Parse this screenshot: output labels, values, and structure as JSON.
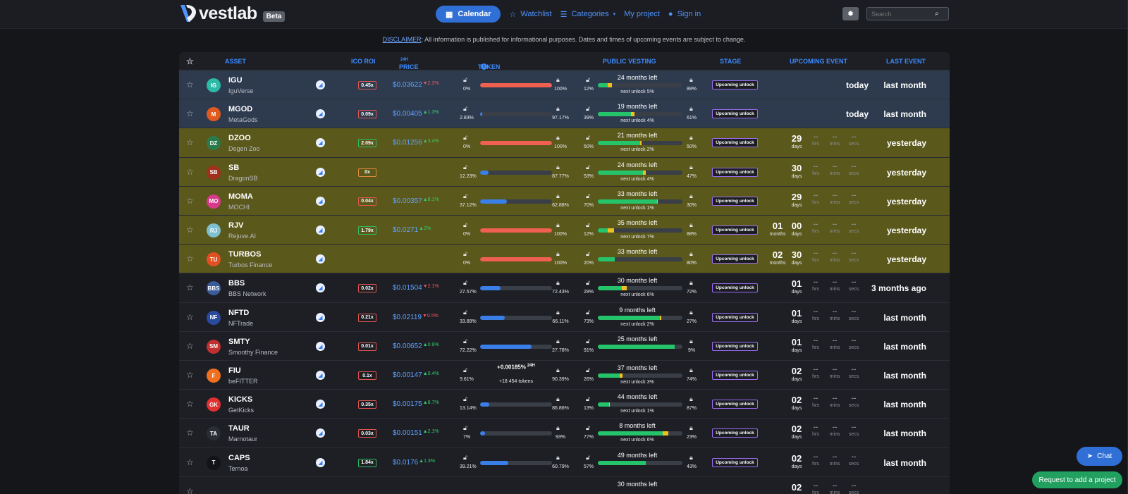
{
  "header": {
    "logo_text": "vestlab",
    "beta_label": "Beta",
    "nav": {
      "calendar": "Calendar",
      "watchlist": "Watchlist",
      "categories": "Categories",
      "my_project": "My project",
      "sign_in": "Sign in"
    },
    "search_placeholder": "Search"
  },
  "disclaimer": {
    "link": "DISCLAIMER",
    "text": ": All information is published for informational purposes. Dates and times of upcoming events are subject to change."
  },
  "columns": {
    "asset": "ASSET",
    "ico_roi": "ICO ROI",
    "price": "PRICE",
    "price_sup": "24H",
    "token_supply": "TOKEN SUPPLY",
    "public_vesting": "PUBLIC VESTING",
    "stage": "STAGE",
    "upcoming_event": "UPCOMING EVENT",
    "last_event": "LAST EVENT"
  },
  "labels": {
    "days": "days",
    "hrs": "hrs",
    "mins": "mins",
    "secs": "secs",
    "months": "months",
    "dash": "--",
    "stage_upcoming": "Upcoming unlock"
  },
  "colors": {
    "row_blue": "#2e3b4f",
    "row_olive": "#5b581c",
    "row_dark": "#1d1f25",
    "supply_red": "#f06050",
    "supply_blue": "#3a7ee8",
    "vest_green": "#25c46a",
    "vest_yellow": "#f0c020"
  },
  "rows": [
    {
      "sym": "IGU",
      "name": "IguVerse",
      "ic": "IG",
      "iccol": "#2bb9a8",
      "roi": "0.45x",
      "roicls": "red",
      "price": "$0.03622",
      "chg": "▼2.3%",
      "dir": "dn",
      "unl": "0%",
      "lck": "100%",
      "fill": 1.0,
      "fcol": "red",
      "vu": "12%",
      "vl": "88%",
      "vt": "24 months left",
      "vs": "next unlock 5%",
      "vg": 0.12,
      "vy": 0.05,
      "stage": true,
      "event": "today",
      "last": "last month",
      "bg": "blue"
    },
    {
      "sym": "MGOD",
      "name": "MetaGods",
      "ic": "M",
      "iccol": "#e05a20",
      "roi": "0.09x",
      "roicls": "red",
      "price": "$0.00405",
      "chg": "▲1.3%",
      "dir": "up",
      "unl": "2.83%",
      "lck": "97.17%",
      "fill": 0.03,
      "fcol": "blue",
      "vu": "39%",
      "vl": "61%",
      "vt": "19 months left",
      "vs": "next unlock 4%",
      "vg": 0.39,
      "vy": 0.04,
      "stage": true,
      "event": "today",
      "last": "last month",
      "bg": "blue"
    },
    {
      "sym": "DZOO",
      "name": "Degen Zoo",
      "ic": "DZ",
      "iccol": "#2a7a4a",
      "roi": "2.09x",
      "roicls": "grn",
      "price": "$0.01256",
      "chg": "▲3.4%",
      "dir": "up",
      "unl": "0%",
      "lck": "100%",
      "fill": 1.0,
      "fcol": "red",
      "vu": "50%",
      "vl": "50%",
      "vt": "21 months left",
      "vs": "next unlock 2%",
      "vg": 0.5,
      "vy": 0.02,
      "stage": true,
      "cd": {
        "a": "29",
        "al": "days"
      },
      "last": "yesterday",
      "bg": "olive"
    },
    {
      "sym": "SB",
      "name": "DragonSB",
      "ic": "SB",
      "iccol": "#a0301c",
      "roi": "0x",
      "roicls": "org",
      "price": "",
      "chg": "",
      "dir": "up",
      "unl": "12.23%",
      "lck": "87.77%",
      "fill": 0.12,
      "fcol": "blue",
      "vu": "53%",
      "vl": "47%",
      "vt": "24 months left",
      "vs": "next unlock 4%",
      "vg": 0.53,
      "vy": 0.04,
      "stage": true,
      "cd": {
        "a": "30",
        "al": "days"
      },
      "last": "yesterday",
      "bg": "olive"
    },
    {
      "sym": "MOMA",
      "name": "MOCHI",
      "ic": "MO",
      "iccol": "#d63a8a",
      "roi": "0.04x",
      "roicls": "red",
      "price": "$0.00357",
      "chg": "▲8.1%",
      "dir": "up",
      "unl": "37.12%",
      "lck": "62.88%",
      "fill": 0.37,
      "fcol": "blue",
      "vu": "70%",
      "vl": "30%",
      "vt": "33 months left",
      "vs": "next unlock 1%",
      "vg": 0.7,
      "vy": 0.01,
      "stage": true,
      "cd": {
        "a": "29",
        "al": "days"
      },
      "last": "yesterday",
      "bg": "olive"
    },
    {
      "sym": "RJV",
      "name": "Rejuve.AI",
      "ic": "RJ",
      "iccol": "#7fbfd0",
      "roi": "1.79x",
      "roicls": "grn",
      "price": "$0.0271",
      "chg": "▲2%",
      "dir": "up",
      "unl": "0%",
      "lck": "100%",
      "fill": 1.0,
      "fcol": "red",
      "vu": "12%",
      "vl": "88%",
      "vt": "35 months left",
      "vs": "next unlock 7%",
      "vg": 0.12,
      "vy": 0.07,
      "stage": true,
      "cd": {
        "m": "01",
        "ml": "months",
        "a": "00",
        "al": "days"
      },
      "last": "yesterday",
      "bg": "olive"
    },
    {
      "sym": "TURBOS",
      "name": "Turbos Finance",
      "ic": "TU",
      "iccol": "#e05020",
      "roi": "",
      "roicls": "",
      "price": "",
      "chg": "",
      "dir": "up",
      "unl": "0%",
      "lck": "100%",
      "fill": 1.0,
      "fcol": "red",
      "vu": "20%",
      "vl": "80%",
      "vt": "33 months left",
      "vs": "",
      "vg": 0.2,
      "vy": 0.0,
      "stage": true,
      "cd": {
        "m": "02",
        "ml": "months",
        "a": "30",
        "al": "days"
      },
      "last": "yesterday",
      "bg": "olive"
    },
    {
      "sym": "BBS",
      "name": "BBS Network",
      "ic": "BBS",
      "iccol": "#3a5a9a",
      "roi": "0.02x",
      "roicls": "red",
      "price": "$0.01504",
      "chg": "▼2.1%",
      "dir": "dn",
      "unl": "27.57%",
      "lck": "72.43%",
      "fill": 0.28,
      "fcol": "blue",
      "vu": "28%",
      "vl": "72%",
      "vt": "30 months left",
      "vs": "next unlock 6%",
      "vg": 0.28,
      "vy": 0.06,
      "stage": true,
      "cd": {
        "a": "01",
        "al": "days"
      },
      "last": "3 months ago",
      "bg": "dark"
    },
    {
      "sym": "NFTD",
      "name": "NFTrade",
      "ic": "NF",
      "iccol": "#2a4aa0",
      "roi": "0.21x",
      "roicls": "red",
      "price": "$0.02119",
      "chg": "▼0.5%",
      "dir": "dn",
      "unl": "33.89%",
      "lck": "66.11%",
      "fill": 0.34,
      "fcol": "blue",
      "vu": "73%",
      "vl": "27%",
      "vt": "9 months left",
      "vs": "next unlock 2%",
      "vg": 0.73,
      "vy": 0.02,
      "stage": true,
      "cd": {
        "a": "01",
        "al": "days"
      },
      "last": "last month",
      "bg": "dark"
    },
    {
      "sym": "SMTY",
      "name": "Smoothy Finance",
      "ic": "SM",
      "iccol": "#c03030",
      "roi": "0.01x",
      "roicls": "red",
      "price": "$0.00652",
      "chg": "▲0.9%",
      "dir": "up",
      "unl": "72.22%",
      "lck": "27.78%",
      "fill": 0.72,
      "fcol": "blue",
      "vu": "91%",
      "vl": "9%",
      "vt": "25 months left",
      "vs": "",
      "vg": 0.91,
      "vy": 0.0,
      "stage": true,
      "cd": {
        "a": "01",
        "al": "days"
      },
      "last": "last month",
      "bg": "dark"
    },
    {
      "sym": "FIU",
      "name": "beFITTER",
      "ic": "F",
      "iccol": "#f07020",
      "roi": "0.1x",
      "roicls": "red",
      "price": "$0.00147",
      "chg": "▲0.4%",
      "dir": "up",
      "unl": "9.61%",
      "lck": "90.39%",
      "fill": 0.1,
      "fcol": "blue",
      "st": "+0.00185%",
      "sts": "24H",
      "ss": "+18 454 tokens",
      "vu": "26%",
      "vl": "74%",
      "vt": "37 months left",
      "vs": "next unlock 3%",
      "vg": 0.26,
      "vy": 0.03,
      "stage": true,
      "cd": {
        "a": "02",
        "al": "days"
      },
      "last": "last month",
      "bg": "dark"
    },
    {
      "sym": "KICKS",
      "name": "GetKicks",
      "ic": "GK",
      "iccol": "#e03030",
      "roi": "0.35x",
      "roicls": "red",
      "price": "$0.00175",
      "chg": "▲8.7%",
      "dir": "up",
      "unl": "13.14%",
      "lck": "86.86%",
      "fill": 0.13,
      "fcol": "blue",
      "vu": "13%",
      "vl": "87%",
      "vt": "44 months left",
      "vs": "next unlock 1%",
      "vg": 0.13,
      "vy": 0.01,
      "stage": true,
      "cd": {
        "a": "02",
        "al": "days"
      },
      "last": "last month",
      "bg": "dark"
    },
    {
      "sym": "TAUR",
      "name": "Marnotaur",
      "ic": "TA",
      "iccol": "#2a2d33",
      "roi": "0.03x",
      "roicls": "red",
      "price": "$0.00151",
      "chg": "▲2.1%",
      "dir": "up",
      "unl": "7%",
      "lck": "93%",
      "fill": 0.07,
      "fcol": "blue",
      "vu": "77%",
      "vl": "23%",
      "vt": "8 months left",
      "vs": "next unlock 6%",
      "vg": 0.77,
      "vy": 0.06,
      "stage": true,
      "cd": {
        "a": "02",
        "al": "days"
      },
      "last": "last month",
      "bg": "dark"
    },
    {
      "sym": "CAPS",
      "name": "Ternoa",
      "ic": "T",
      "iccol": "#111318",
      "roi": "1.84x",
      "roicls": "grn",
      "price": "$0.0176",
      "chg": "▲1.3%",
      "dir": "up",
      "unl": "39.21%",
      "lck": "60.79%",
      "fill": 0.39,
      "fcol": "blue",
      "vu": "57%",
      "vl": "43%",
      "vt": "49 months left",
      "vs": "",
      "vg": 0.57,
      "vy": 0.0,
      "stage": true,
      "cd": {
        "a": "02",
        "al": "days"
      },
      "last": "last month",
      "bg": "dark"
    },
    {
      "sym": "",
      "name": "",
      "ic": "",
      "iccol": "#1d1f25",
      "roi": "",
      "roicls": "",
      "price": "",
      "chg": "",
      "dir": "up",
      "unl": "",
      "lck": "",
      "fill": 0,
      "fcol": "blue",
      "vu": "",
      "vl": "",
      "vt": "30 months left",
      "vs": "",
      "vg": 0,
      "vy": 0,
      "stage": false,
      "cd": {
        "a": "02",
        "al": ""
      },
      "last": "",
      "bg": "dark"
    }
  ],
  "chat_label": "Chat",
  "request_label": "Request to add a project"
}
